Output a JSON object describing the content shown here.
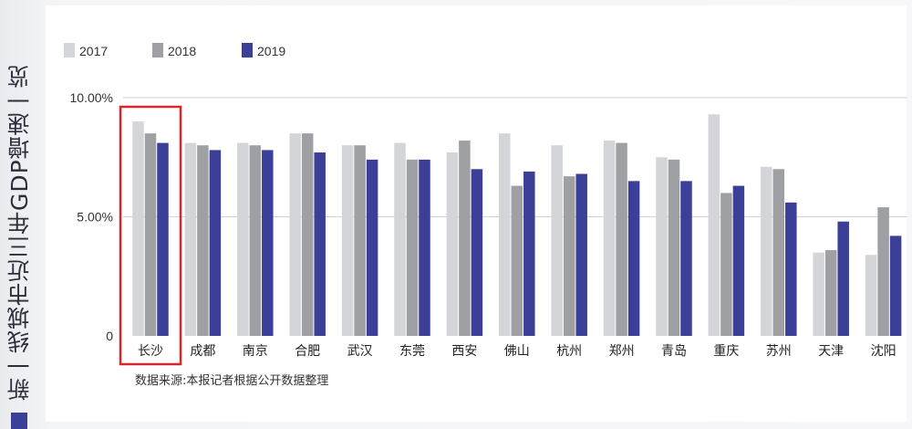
{
  "side_title": "新一线城市近三年GDP增速一览",
  "source_note": "数据来源:本报记者根据公开数据整理",
  "chart_data": {
    "type": "bar",
    "title": "新一线城市近三年GDP增速一览",
    "xlabel": "",
    "ylabel": "",
    "ylim": [
      0,
      10
    ],
    "y_ticks": [
      {
        "value": 0,
        "label": "0"
      },
      {
        "value": 5,
        "label": "5.00%"
      },
      {
        "value": 10,
        "label": "10.00%"
      }
    ],
    "grid": true,
    "legend_position": "top-left",
    "categories": [
      "长沙",
      "成都",
      "南京",
      "合肥",
      "武汉",
      "东莞",
      "西安",
      "佛山",
      "杭州",
      "郑州",
      "青岛",
      "重庆",
      "苏州",
      "天津",
      "沈阳"
    ],
    "highlighted_category": "长沙",
    "series": [
      {
        "name": "2017",
        "color": "#d4d5d9",
        "values": [
          9.0,
          8.1,
          8.1,
          8.5,
          8.0,
          8.1,
          7.7,
          8.5,
          8.0,
          8.2,
          7.5,
          9.3,
          7.1,
          3.5,
          3.4
        ]
      },
      {
        "name": "2018",
        "color": "#9fa0a4",
        "values": [
          8.5,
          8.0,
          8.0,
          8.5,
          8.0,
          7.4,
          8.2,
          6.3,
          6.7,
          8.1,
          7.4,
          6.0,
          7.0,
          3.6,
          5.4
        ]
      },
      {
        "name": "2019",
        "color": "#3b3f97",
        "values": [
          8.1,
          7.8,
          7.8,
          7.7,
          7.4,
          7.4,
          7.0,
          6.9,
          6.8,
          6.5,
          6.5,
          6.3,
          5.6,
          4.8,
          4.2
        ]
      }
    ]
  }
}
